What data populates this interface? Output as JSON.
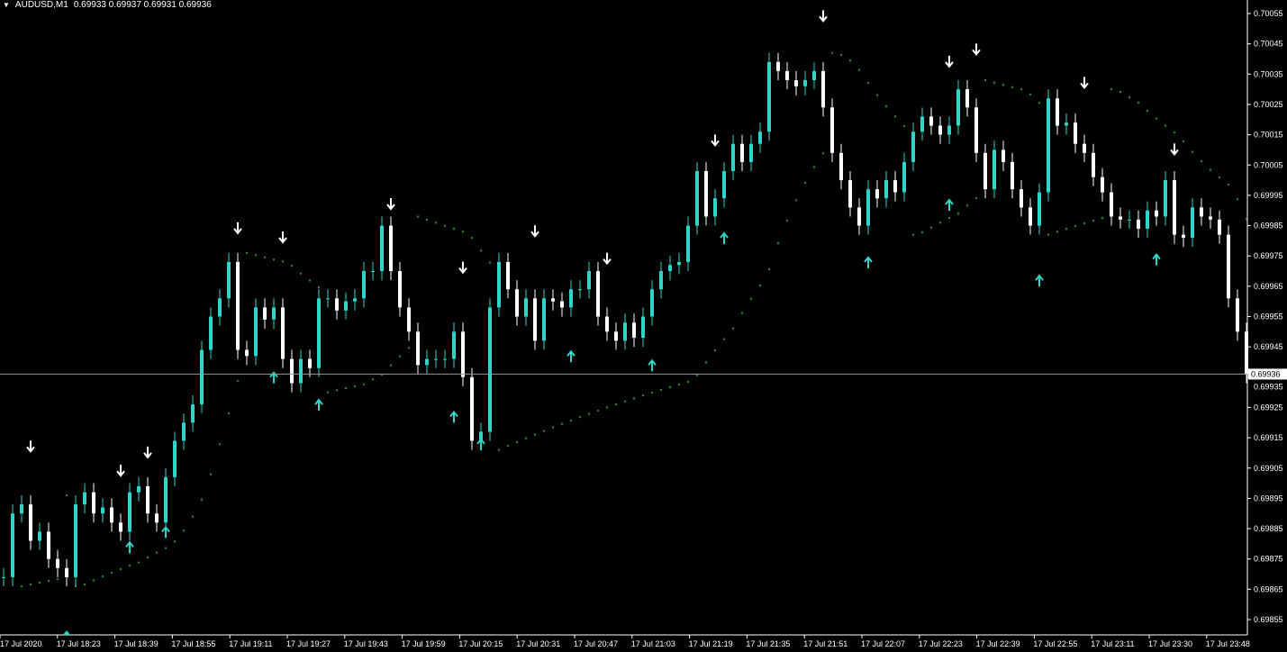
{
  "header": {
    "symbol": "AUDUSD,M1",
    "ohlc": "0.69933 0.69937 0.69931 0.69936"
  },
  "colors": {
    "background": "#000000",
    "bull": "#2fd5c8",
    "bear": "#ffffff",
    "sar": "#1f9a2a",
    "up_arrow": "#2fd5c8",
    "down_arrow": "#ffffff",
    "price_line": "#9a9a9a",
    "axis": "#ffffff"
  },
  "chart_data": {
    "type": "candlestick",
    "title": "AUDUSD,M1",
    "current_price": "0.69936",
    "ylim": [
      0.69852,
      0.70058
    ],
    "y_ticks": [
      "0.70055",
      "0.70045",
      "0.70035",
      "0.70025",
      "0.70015",
      "0.70005",
      "0.69995",
      "0.69985",
      "0.69975",
      "0.69965",
      "0.69955",
      "0.69945",
      "0.69935",
      "0.69925",
      "0.69915",
      "0.69905",
      "0.69895",
      "0.69885",
      "0.69875",
      "0.69865",
      "0.69855"
    ],
    "x_ticks": [
      "17 Jul 2020",
      "17 Jul 18:23",
      "17 Jul 18:39",
      "17 Jul 18:55",
      "17 Jul 19:11",
      "17 Jul 19:27",
      "17 Jul 19:43",
      "17 Jul 19:59",
      "17 Jul 20:15",
      "17 Jul 20:31",
      "17 Jul 20:47",
      "17 Jul 21:03",
      "17 Jul 21:19",
      "17 Jul 21:35",
      "17 Jul 21:51",
      "17 Jul 22:07",
      "17 Jul 22:23",
      "17 Jul 22:39",
      "17 Jul 22:55",
      "17 Jul 23:11",
      "17 Jul 23:30",
      "17 Jul 23:48"
    ],
    "closes": [
      0.69869,
      0.6989,
      0.69893,
      0.69881,
      0.69884,
      0.69875,
      0.69872,
      0.69869,
      0.69893,
      0.69897,
      0.6989,
      0.69892,
      0.69887,
      0.69884,
      0.69897,
      0.69899,
      0.6989,
      0.69887,
      0.69902,
      0.69914,
      0.6992,
      0.69926,
      0.69944,
      0.69955,
      0.69961,
      0.69973,
      0.69944,
      0.69942,
      0.69958,
      0.69954,
      0.69958,
      0.69941,
      0.69933,
      0.69941,
      0.69938,
      0.69961,
      0.69961,
      0.69957,
      0.6996,
      0.69961,
      0.6997,
      0.6997,
      0.69985,
      0.6997,
      0.69958,
      0.6995,
      0.69939,
      0.69941,
      0.69941,
      0.69941,
      0.6995,
      0.69935,
      0.69914,
      0.69917,
      0.69958,
      0.69973,
      0.69964,
      0.69955,
      0.69961,
      0.69947,
      0.69961,
      0.6996,
      0.69958,
      0.69964,
      0.69964,
      0.6997,
      0.69955,
      0.6995,
      0.69947,
      0.69953,
      0.69948,
      0.69955,
      0.69964,
      0.6997,
      0.69972,
      0.69973,
      0.69985,
      0.70003,
      0.69988,
      0.69994,
      0.70003,
      0.70012,
      0.70006,
      0.70012,
      0.70016,
      0.70039,
      0.70036,
      0.70033,
      0.70031,
      0.70033,
      0.70036,
      0.70024,
      0.70009,
      0.7,
      0.69991,
      0.69985,
      0.69997,
      0.69994,
      0.7,
      0.69996,
      0.70006,
      0.70016,
      0.70021,
      0.70018,
      0.70015,
      0.70018,
      0.7003,
      0.70024,
      0.70009,
      0.69997,
      0.7001,
      0.70006,
      0.69997,
      0.69991,
      0.69985,
      0.69996,
      0.70027,
      0.70018,
      0.70019,
      0.70012,
      0.70009,
      0.70001,
      0.69996,
      0.69988,
      0.69987,
      0.69987,
      0.69984,
      0.6999,
      0.69988,
      0.7,
      0.69982,
      0.69981,
      0.69991,
      0.69988,
      0.69987,
      0.69982,
      0.69961,
      0.6995,
      0.69936
    ],
    "down_arrows": [
      {
        "bar": 3,
        "price": 0.69912
      },
      {
        "bar": 13,
        "price": 0.69904
      },
      {
        "bar": 16,
        "price": 0.6991
      },
      {
        "bar": 26,
        "price": 0.69984
      },
      {
        "bar": 31,
        "price": 0.69981
      },
      {
        "bar": 43,
        "price": 0.69992
      },
      {
        "bar": 51,
        "price": 0.69971
      },
      {
        "bar": 59,
        "price": 0.69983
      },
      {
        "bar": 67,
        "price": 0.69974
      },
      {
        "bar": 79,
        "price": 0.70013
      },
      {
        "bar": 91,
        "price": 0.70054
      },
      {
        "bar": 105,
        "price": 0.70039
      },
      {
        "bar": 108,
        "price": 0.70043
      },
      {
        "bar": 120,
        "price": 0.70032
      },
      {
        "bar": 130,
        "price": 0.7001
      }
    ],
    "up_arrows": [
      {
        "bar": 14,
        "price": 0.69879
      },
      {
        "bar": 18,
        "price": 0.69884
      },
      {
        "bar": 30,
        "price": 0.69935
      },
      {
        "bar": 35,
        "price": 0.69926
      },
      {
        "bar": 50,
        "price": 0.69922
      },
      {
        "bar": 53,
        "price": 0.69913
      },
      {
        "bar": 63,
        "price": 0.69942
      },
      {
        "bar": 72,
        "price": 0.69939
      },
      {
        "bar": 80,
        "price": 0.69981
      },
      {
        "bar": 96,
        "price": 0.69973
      },
      {
        "bar": 105,
        "price": 0.69992
      },
      {
        "bar": 115,
        "price": 0.69967
      },
      {
        "bar": 128,
        "price": 0.69974
      }
    ]
  }
}
